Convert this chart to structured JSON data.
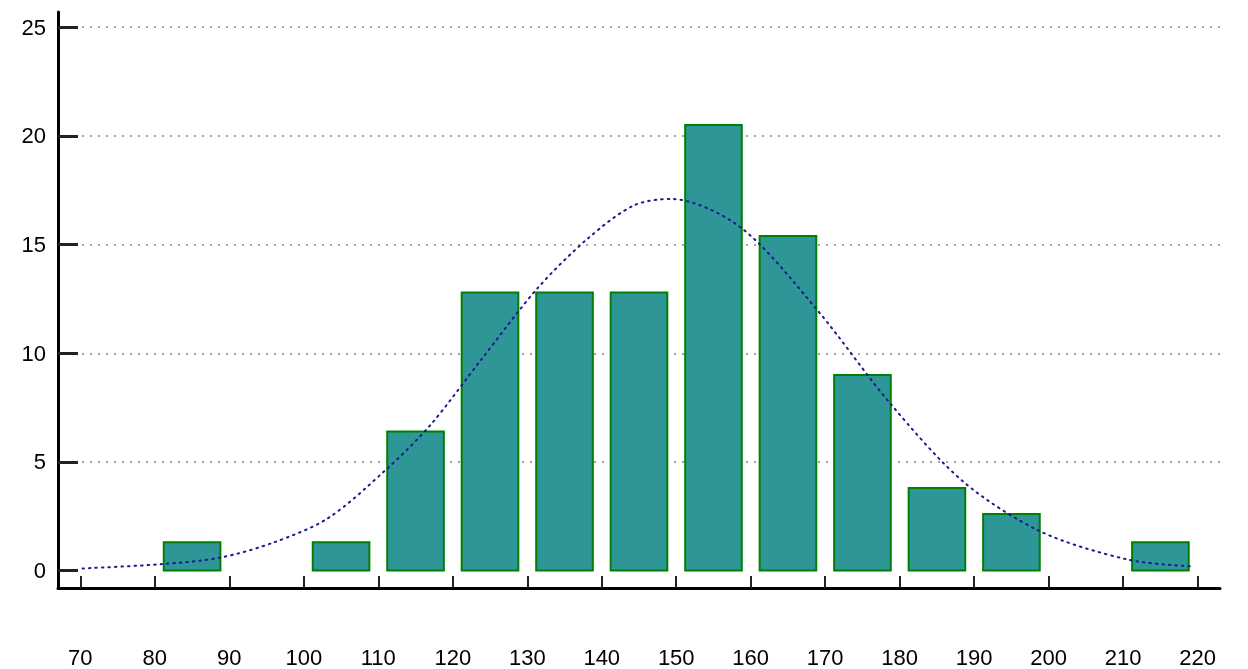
{
  "chart_data": {
    "type": "histogram",
    "bins": [
      70,
      80,
      90,
      100,
      110,
      120,
      130,
      140,
      150,
      160,
      170,
      180,
      190,
      200,
      210,
      220
    ],
    "values": [
      0,
      1.3,
      0,
      1.3,
      6.4,
      12.8,
      12.8,
      12.8,
      20.5,
      15.4,
      9.0,
      3.8,
      2.6,
      0,
      1.3
    ],
    "color": "#2e9696",
    "series": [
      {
        "type": "line",
        "color": "#1a1a8c",
        "line_style": "dotted",
        "marker": "none",
        "x": [
          70.3,
          81,
          88.8,
          96,
          103.2,
          110.9,
          117,
          123.8,
          131.4,
          138.2,
          144.3,
          149.3,
          158.6,
          168.9,
          178.7,
          188.5,
          198.9,
          210.7,
          219
        ],
        "values": [
          0.1,
          0.3,
          0.6,
          1.3,
          2.4,
          4.6,
          6.7,
          9.7,
          13.0,
          15.3,
          16.8,
          17.1,
          15.8,
          12.0,
          7.7,
          4.1,
          1.8,
          0.5,
          0.2
        ]
      }
    ],
    "xlim": [
      67,
      223
    ],
    "xticks": [
      70,
      80,
      90,
      100,
      110,
      120,
      130,
      140,
      150,
      160,
      170,
      180,
      190,
      200,
      210,
      220
    ],
    "ylim": [
      -0.8,
      25.7
    ],
    "yticks": [
      0,
      5,
      10,
      15,
      20,
      25
    ],
    "grid": "y"
  }
}
